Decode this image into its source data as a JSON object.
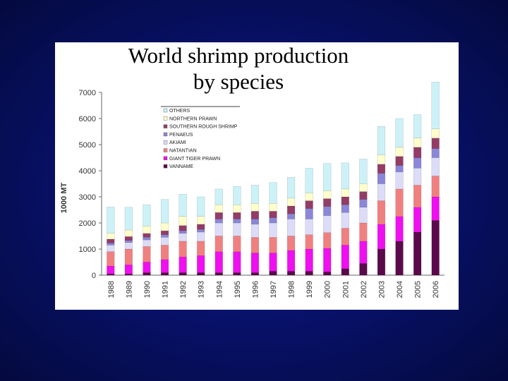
{
  "chart_data": {
    "type": "bar",
    "stacked": true,
    "title": [
      "World shrimp production",
      "by species"
    ],
    "xlabel": "",
    "ylabel": "1000 MT",
    "ylim": [
      0,
      7000
    ],
    "yticks": [
      0,
      1000,
      2000,
      3000,
      4000,
      5000,
      6000,
      7000
    ],
    "ytick_labels": [
      "0",
      "1000",
      "2000",
      "3000",
      "4000",
      "5000",
      "6000",
      "7000"
    ],
    "categories": [
      "1988",
      "1989",
      "1990",
      "1991",
      "1992",
      "1993",
      "1994",
      "1995",
      "1996",
      "1997",
      "1998",
      "1999",
      "2000",
      "2001",
      "2002",
      "2003",
      "2004",
      "2005",
      "2006"
    ],
    "legend_position": "top-center",
    "series": [
      {
        "name": "VANNAME",
        "color": "#5a0a4a",
        "values": [
          50,
          50,
          100,
          100,
          100,
          100,
          100,
          100,
          100,
          150,
          150,
          150,
          130,
          250,
          450,
          1000,
          1300,
          1650,
          2100
        ]
      },
      {
        "name": "GIANT TIGER PRAWN",
        "color": "#ee10ee",
        "values": [
          300,
          350,
          400,
          500,
          600,
          650,
          800,
          800,
          750,
          700,
          800,
          850,
          900,
          900,
          850,
          950,
          950,
          950,
          900
        ]
      },
      {
        "name": "NATANTIAN",
        "color": "#f08080",
        "values": [
          550,
          600,
          600,
          550,
          600,
          550,
          600,
          600,
          600,
          600,
          550,
          550,
          600,
          650,
          700,
          900,
          1050,
          850,
          800
        ]
      },
      {
        "name": "AKIAMI",
        "color": "#dcdcf8",
        "values": [
          250,
          250,
          250,
          300,
          300,
          350,
          500,
          500,
          500,
          550,
          650,
          600,
          650,
          600,
          600,
          650,
          650,
          650,
          700
        ]
      },
      {
        "name": "PENAEUS",
        "color": "#8a86d8",
        "values": [
          80,
          80,
          100,
          100,
          100,
          100,
          150,
          150,
          200,
          200,
          200,
          400,
          350,
          300,
          300,
          400,
          250,
          400,
          350
        ]
      },
      {
        "name": "SOUTHERN ROUGH SHRIMP",
        "color": "#933c66",
        "values": [
          150,
          150,
          150,
          150,
          200,
          200,
          250,
          250,
          300,
          250,
          300,
          300,
          300,
          300,
          300,
          350,
          350,
          400,
          400
        ]
      },
      {
        "name": "NORTHERN PRAWN",
        "color": "#ffffcc",
        "values": [
          230,
          250,
          280,
          300,
          350,
          300,
          300,
          300,
          300,
          300,
          300,
          300,
          300,
          300,
          300,
          350,
          350,
          350,
          350
        ]
      },
      {
        "name": "OTHERS",
        "color": "#ccf2f8",
        "values": [
          1000,
          870,
          820,
          900,
          850,
          750,
          600,
          700,
          700,
          800,
          800,
          950,
          1050,
          1000,
          950,
          1100,
          1100,
          900,
          1800
        ]
      }
    ]
  }
}
